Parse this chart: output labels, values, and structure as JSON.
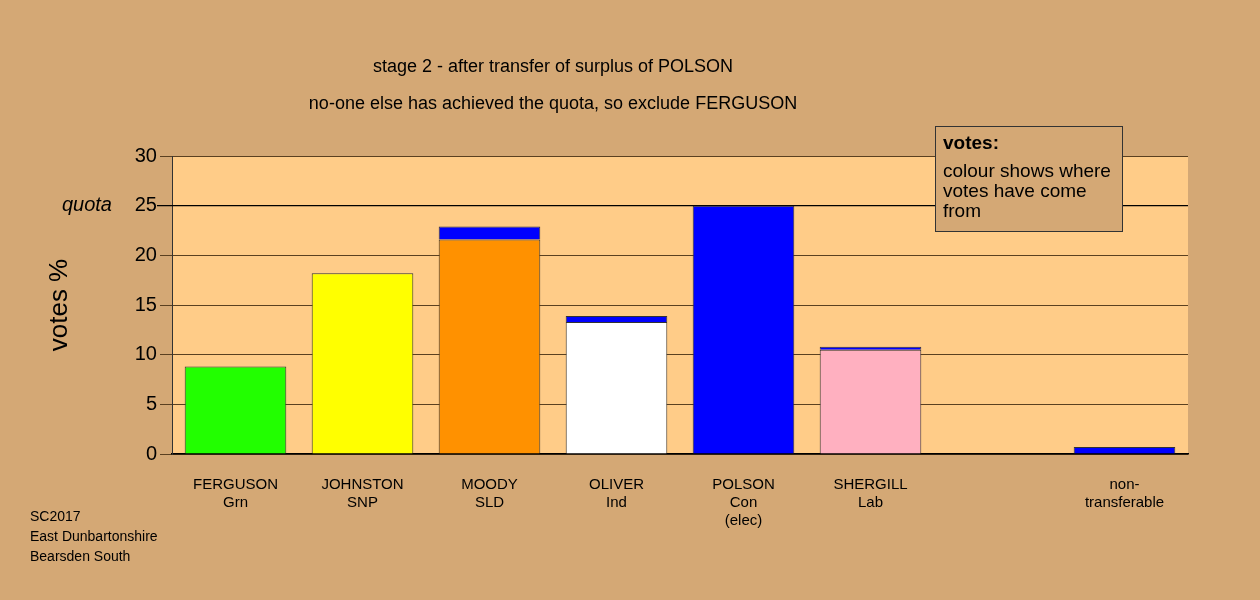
{
  "chart_data": {
    "type": "bar",
    "title": "stage 2 - after transfer of surplus of POLSON",
    "subtitle": "no-one else has achieved the quota, so exclude FERGUSON",
    "ylabel": "votes %",
    "categories": [
      "FERGUSON\nGrn",
      "JOHNSTON\nSNP",
      "MOODY\nSLD",
      "OLIVER\nInd",
      "POLSON\nCon\n(elec)",
      "SHERGILL\nLab",
      null,
      "non-\ntransferable"
    ],
    "stacked": true,
    "series": [
      {
        "colors": [
          "#22ff00",
          "#ffff00",
          "#ff9100",
          "#ffffff",
          "#0000ff",
          "#ffb0c0",
          null,
          "#0000ff"
        ],
        "values": [
          8.8,
          18.2,
          21.6,
          13.3,
          25,
          10.5,
          null,
          0
        ]
      },
      {
        "color": "#0000ff",
        "values": [
          0,
          0,
          1.3,
          0.6,
          0,
          0.3,
          null,
          0.7
        ]
      }
    ],
    "ylim": [
      0,
      30
    ],
    "yticks": [
      0,
      5,
      10,
      15,
      20,
      25,
      30
    ],
    "grid": "y",
    "legend": false,
    "ref_lines": [
      {
        "axis": "y",
        "value": 25,
        "label": "quota",
        "color": "#000000",
        "line_style": "solid"
      }
    ],
    "annotations": [
      "votes:",
      "colour shows where votes have come from",
      "SC2017\nEast Dunbartonshire\nBearsden South"
    ]
  }
}
